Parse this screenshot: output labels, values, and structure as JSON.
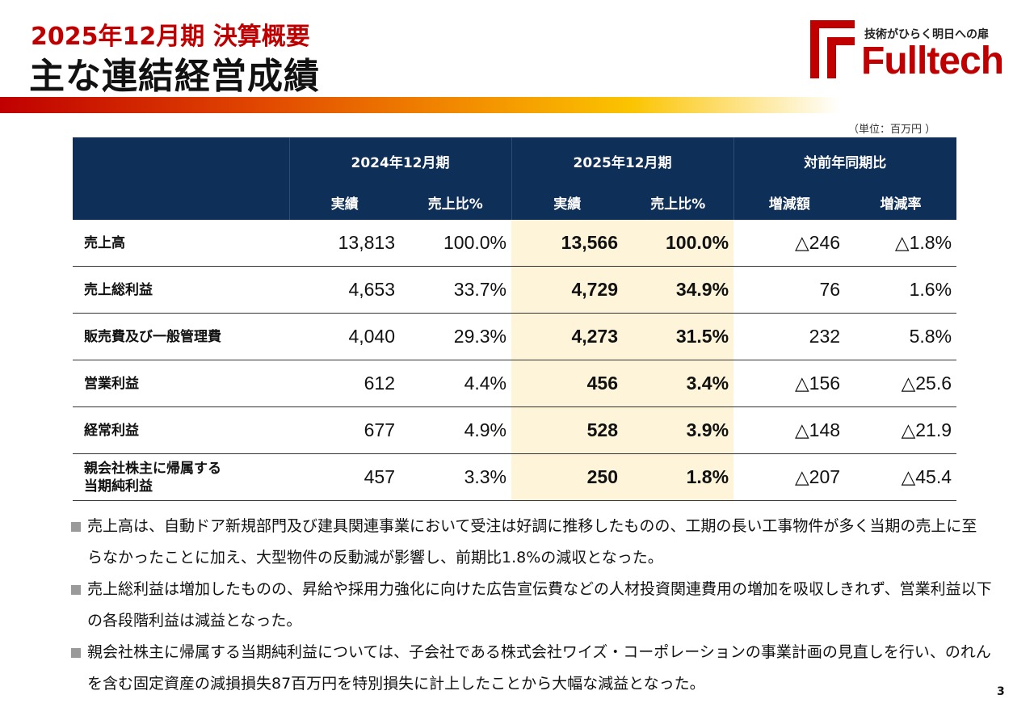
{
  "header": {
    "subtitle": "2025年12月期 決算概要",
    "title": "主な連結経営成績"
  },
  "logo": {
    "tagline": "技術がひらく明日への扉",
    "wordmark": "Fulltech",
    "color": "#c00000"
  },
  "unit_note": "（単位：百万円 ）",
  "table": {
    "group_headers": [
      "2024年12月期",
      "2025年12月期",
      "対前年同期比"
    ],
    "sub_headers": [
      "実績",
      "売上比%",
      "実績",
      "売上比%",
      "増減額",
      "増減率"
    ],
    "rows": [
      {
        "label": "売上高",
        "cells": [
          "13,813",
          "100.0%",
          "13,566",
          "100.0%",
          "△246",
          "△1.8%"
        ]
      },
      {
        "label": "売上総利益",
        "cells": [
          "4,653",
          "33.7%",
          "4,729",
          "34.9%",
          "76",
          "1.6%"
        ]
      },
      {
        "label": "販売費及び一般管理費",
        "cells": [
          "4,040",
          "29.3%",
          "4,273",
          "31.5%",
          "232",
          "5.8%"
        ]
      },
      {
        "label": "営業利益",
        "cells": [
          "612",
          "4.4%",
          "456",
          "3.4%",
          "△156",
          "△25.6"
        ]
      },
      {
        "label": "経常利益",
        "cells": [
          "677",
          "4.9%",
          "528",
          "3.9%",
          "△148",
          "△21.9"
        ]
      },
      {
        "label": "親会社株主に帰属する\n当期純利益",
        "cells": [
          "457",
          "3.3%",
          "250",
          "1.8%",
          "△207",
          "△45.4"
        ]
      }
    ]
  },
  "notes": [
    "売上高は、自動ドア新規部門及び建具関連事業において受注は好調に推移したものの、工期の長い工事物件が多く当期の売上に至らなかったことに加え、大型物件の反動減が影響し、前期比1.8%の減収となった。",
    "売上総利益は増加したものの、昇給や採用力強化に向けた広告宣伝費などの人材投資関連費用の増加を吸収しきれず、営業利益以下の各段階利益は減益となった。",
    "親会社株主に帰属する当期純利益については、子会社である株式会社ワイズ・コーポレーションの事業計画の見直しを行い、のれんを含む固定資産の減損損失87百万円を特別損失に計上したことから大幅な減益となった。"
  ],
  "page_number": "3"
}
